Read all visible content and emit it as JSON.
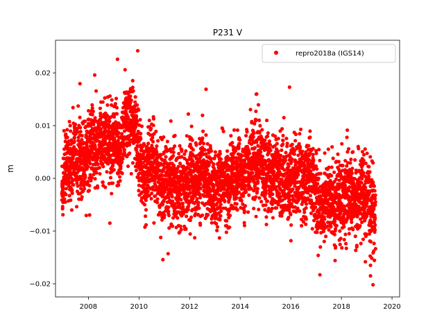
{
  "chart_data": {
    "type": "scatter",
    "title": "P231 V",
    "xlabel": "",
    "ylabel": "m",
    "xlim": [
      2006.7,
      2020.3
    ],
    "ylim": [
      -0.0225,
      0.0262
    ],
    "x_ticks": [
      2008,
      2010,
      2012,
      2014,
      2016,
      2018,
      2020
    ],
    "y_ticks": [
      -0.02,
      -0.01,
      0.0,
      0.01,
      0.02
    ],
    "y_tick_labels": [
      "−0.02",
      "−0.01",
      "0.00",
      "0.01",
      "0.02"
    ],
    "grid": false,
    "legend_position": "top-right",
    "series": [
      {
        "name": "repro2018a (IGS14)",
        "color": "#ff0000",
        "marker": "circle",
        "x": [
          2006.95,
          2007.05,
          2007.15,
          2007.25,
          2007.35,
          2007.45,
          2007.55,
          2007.65,
          2007.75,
          2007.85,
          2007.95,
          2008.05,
          2008.15,
          2008.25,
          2008.35,
          2008.45,
          2008.55,
          2008.65,
          2008.75,
          2008.85,
          2008.95,
          2009.05,
          2009.15,
          2009.25,
          2009.35,
          2009.45,
          2009.55,
          2009.65,
          2009.75,
          2009.85,
          2009.95,
          2010.05,
          2010.15,
          2010.25,
          2010.35,
          2010.45,
          2010.55,
          2010.65,
          2010.75,
          2010.85,
          2010.95,
          2011.05,
          2011.15,
          2011.25,
          2011.35,
          2011.45,
          2011.55,
          2011.65,
          2011.75,
          2011.85,
          2011.95,
          2012.05,
          2012.15,
          2012.25,
          2012.35,
          2012.45,
          2012.55,
          2012.65,
          2012.75,
          2012.85,
          2012.95,
          2013.05,
          2013.15,
          2013.25,
          2013.35,
          2013.45,
          2013.55,
          2013.65,
          2013.75,
          2013.85,
          2013.95,
          2014.05,
          2014.15,
          2014.25,
          2014.35,
          2014.45,
          2014.55,
          2014.65,
          2014.75,
          2014.85,
          2014.95,
          2015.05,
          2015.15,
          2015.25,
          2015.35,
          2015.45,
          2015.55,
          2015.65,
          2015.75,
          2015.85,
          2015.95,
          2016.05,
          2016.15,
          2016.25,
          2016.35,
          2016.45,
          2016.55,
          2016.65,
          2016.75,
          2016.85,
          2016.95,
          2017.05,
          2017.15,
          2017.25,
          2017.35,
          2017.45,
          2017.55,
          2017.65,
          2017.75,
          2017.85,
          2017.95,
          2018.05,
          2018.15,
          2018.25,
          2018.35,
          2018.45,
          2018.55,
          2018.65,
          2018.75,
          2018.85,
          2018.95,
          2019.05,
          2019.15,
          2019.25,
          2019.35
        ],
        "y": [
          -0.003,
          0.002,
          0.004,
          0.001,
          0.003,
          0.006,
          0.002,
          0.004,
          0.005,
          0.003,
          0.006,
          0.005,
          0.007,
          0.006,
          0.004,
          0.008,
          0.005,
          0.009,
          0.007,
          0.006,
          0.005,
          0.007,
          0.006,
          0.004,
          0.009,
          0.01,
          0.011,
          0.012,
          0.01,
          0.009,
          0.007,
          0.004,
          0.001,
          -0.001,
          0.002,
          0.004,
          0.002,
          0.003,
          0.001,
          -0.001,
          -0.002,
          0.0,
          -0.002,
          -0.001,
          0.001,
          -0.003,
          -0.002,
          0.0,
          -0.001,
          -0.002,
          0.0,
          0.001,
          -0.001,
          0.0,
          -0.002,
          0.001,
          0.002,
          0.0,
          -0.001,
          -0.002,
          -0.001,
          -0.003,
          -0.002,
          -0.001,
          0.0,
          -0.001,
          -0.002,
          0.001,
          0.0,
          -0.001,
          0.002,
          0.001,
          0.0,
          0.003,
          0.002,
          0.004,
          0.003,
          0.002,
          0.004,
          0.003,
          0.001,
          0.002,
          0.001,
          0.0,
          0.002,
          0.001,
          0.0,
          0.001,
          -0.001,
          0.0,
          -0.002,
          0.0,
          0.001,
          -0.001,
          0.001,
          0.0,
          -0.001,
          0.0,
          0.002,
          -0.001,
          -0.002,
          -0.004,
          -0.005,
          -0.006,
          -0.003,
          -0.004,
          -0.005,
          -0.003,
          -0.006,
          -0.002,
          -0.004,
          -0.003,
          -0.005,
          -0.002,
          -0.004,
          -0.003,
          -0.005,
          -0.004,
          -0.002,
          -0.003,
          -0.005,
          -0.004,
          -0.006,
          -0.005,
          -0.007
        ],
        "spread": [
          0.0045,
          0.0045,
          0.0045,
          0.0045,
          0.0045,
          0.0045,
          0.0045,
          0.0045,
          0.0045,
          0.0045,
          0.0045,
          0.0045,
          0.0045,
          0.0045,
          0.0045,
          0.0045,
          0.0045,
          0.0045,
          0.0045,
          0.0045,
          0.0045,
          0.0045,
          0.0045,
          0.0045,
          0.0045,
          0.0045,
          0.0045,
          0.0045,
          0.0045,
          0.0045,
          0.0045,
          0.0045,
          0.0045,
          0.0045,
          0.0045,
          0.0045,
          0.0045,
          0.0045,
          0.0045,
          0.0045,
          0.0045,
          0.0045,
          0.0045,
          0.0045,
          0.0045,
          0.0045,
          0.0045,
          0.0045,
          0.0045,
          0.0045,
          0.0045,
          0.0045,
          0.0045,
          0.0045,
          0.0045,
          0.0045,
          0.0045,
          0.0045,
          0.0045,
          0.0045,
          0.0045,
          0.0045,
          0.0045,
          0.0045,
          0.0045,
          0.0045,
          0.0045,
          0.0045,
          0.0045,
          0.0045,
          0.0045,
          0.0045,
          0.0045,
          0.0045,
          0.0045,
          0.0045,
          0.0045,
          0.0045,
          0.0045,
          0.0045,
          0.0045,
          0.0045,
          0.0045,
          0.0045,
          0.0045,
          0.0045,
          0.0045,
          0.0045,
          0.0045,
          0.0045,
          0.0045,
          0.0045,
          0.0045,
          0.0045,
          0.0045,
          0.0045,
          0.0045,
          0.0045,
          0.0045,
          0.0045,
          0.0045,
          0.0045,
          0.0045,
          0.0045,
          0.0045,
          0.0045,
          0.0045,
          0.0045,
          0.0045,
          0.0045,
          0.0045,
          0.0045,
          0.0045,
          0.0045,
          0.0045,
          0.0045,
          0.0045,
          0.0045,
          0.0045,
          0.0045,
          0.0045,
          0.0045,
          0.0045,
          0.0045,
          0.0045
        ],
        "outliers_x": [
          2009.15,
          2009.95,
          2009.45,
          2008.25,
          2012.65,
          2014.65,
          2015.95,
          2008.85,
          2011.15,
          2017.15,
          2017.75,
          2019.15,
          2019.15,
          2019.25
        ],
        "outliers_y": [
          0.0226,
          0.0242,
          0.0206,
          0.0196,
          0.0169,
          0.016,
          0.0173,
          -0.0085,
          -0.0143,
          -0.0183,
          -0.0156,
          -0.0165,
          -0.0185,
          -0.0202
        ]
      }
    ]
  }
}
